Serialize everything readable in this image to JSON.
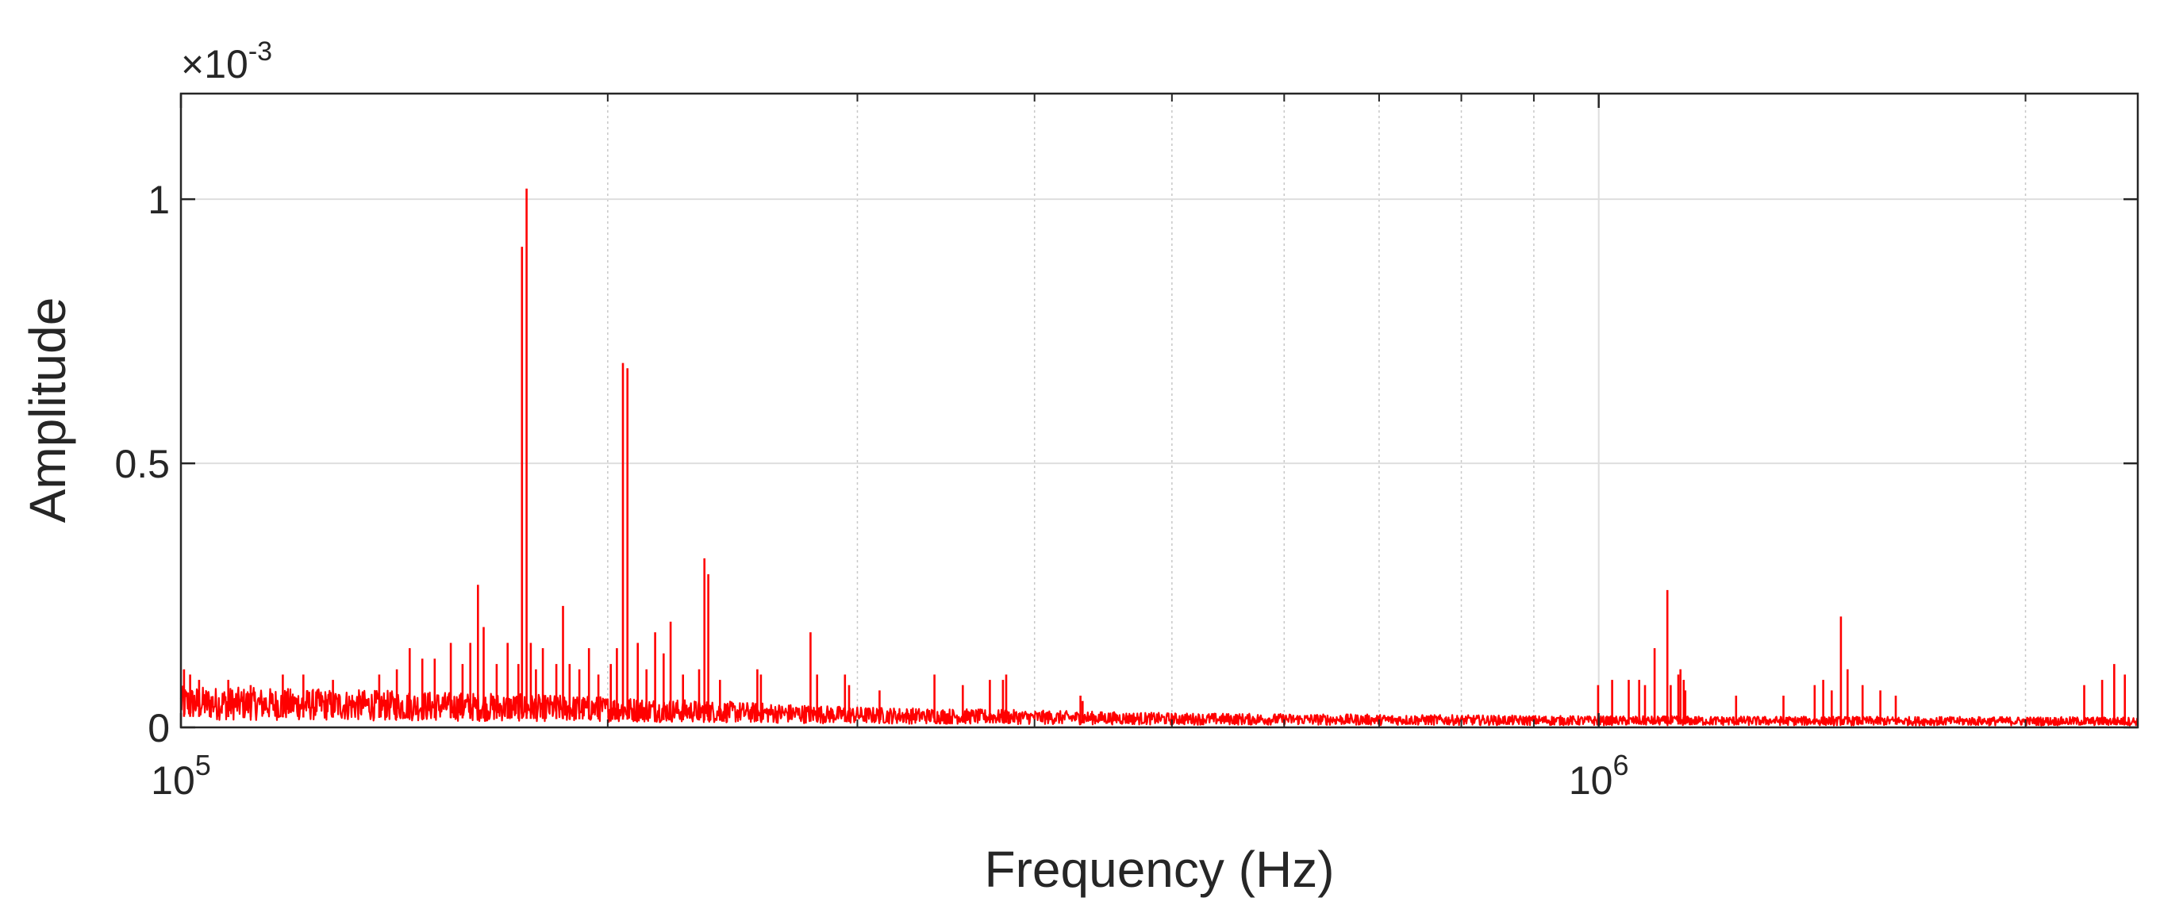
{
  "chart_data": {
    "type": "line",
    "title": "",
    "xlabel": "Frequency (Hz)",
    "ylabel": "Amplitude",
    "x_scale": "log",
    "xlim": [
      100000,
      2400000
    ],
    "ylim": [
      0,
      0.0012
    ],
    "y_exponent_label": {
      "base": "×10",
      "power": "-3"
    },
    "x_ticks": [
      {
        "value": 100000,
        "base": "10",
        "power": "5"
      },
      {
        "value": 1000000,
        "base": "10",
        "power": "6"
      }
    ],
    "y_ticks": [
      {
        "value": 0,
        "label": "0"
      },
      {
        "value": 0.0005,
        "label": "0.5"
      },
      {
        "value": 0.001,
        "label": "1"
      }
    ],
    "grid": true,
    "minor_grid_x": true,
    "line_color": "#ff0000",
    "noise_floor": [
      [
        100000,
        4e-05
      ],
      [
        150000,
        3.5e-05
      ],
      [
        200000,
        3e-05
      ],
      [
        300000,
        2e-05
      ],
      [
        500000,
        1.4e-05
      ],
      [
        1000000,
        1.1e-05
      ],
      [
        2400000,
        1e-05
      ]
    ],
    "series": [
      {
        "peaks": [
          [
            100500,
            0.00011
          ],
          [
            101500,
            0.0001
          ],
          [
            103000,
            9e-05
          ],
          [
            108000,
            9e-05
          ],
          [
            112000,
            8e-05
          ],
          [
            118000,
            0.0001
          ],
          [
            122000,
            0.0001
          ],
          [
            128000,
            9e-05
          ],
          [
            138000,
            0.0001
          ],
          [
            142000,
            0.00011
          ],
          [
            145000,
            0.00015
          ],
          [
            148000,
            0.00013
          ],
          [
            151000,
            0.00013
          ],
          [
            155000,
            0.00016
          ],
          [
            158000,
            0.00012
          ],
          [
            160000,
            0.00016
          ],
          [
            162000,
            0.00027
          ],
          [
            163500,
            0.00019
          ],
          [
            167000,
            0.00012
          ],
          [
            170000,
            0.00016
          ],
          [
            173000,
            0.00012
          ],
          [
            174000,
            0.00091
          ],
          [
            175300,
            0.00102
          ],
          [
            176500,
            0.00016
          ],
          [
            178000,
            0.00011
          ],
          [
            180000,
            0.00015
          ],
          [
            184000,
            0.00012
          ],
          [
            186000,
            0.00023
          ],
          [
            188000,
            0.00012
          ],
          [
            191000,
            0.00011
          ],
          [
            194000,
            0.00015
          ],
          [
            197000,
            0.0001
          ],
          [
            201000,
            0.00012
          ],
          [
            203000,
            0.00015
          ],
          [
            205000,
            0.00069
          ],
          [
            206500,
            0.00068
          ],
          [
            210000,
            0.00016
          ],
          [
            213000,
            0.00011
          ],
          [
            216000,
            0.00018
          ],
          [
            219000,
            0.00014
          ],
          [
            221500,
            0.0002
          ],
          [
            226000,
            0.0001
          ],
          [
            232000,
            0.00011
          ],
          [
            234000,
            0.00032
          ],
          [
            235500,
            0.00029
          ],
          [
            240000,
            9e-05
          ],
          [
            255000,
            0.00011
          ],
          [
            256500,
            0.0001
          ],
          [
            278000,
            0.00018
          ],
          [
            281000,
            0.0001
          ],
          [
            294000,
            0.0001
          ],
          [
            296000,
            8e-05
          ],
          [
            311000,
            7e-05
          ],
          [
            340000,
            0.0001
          ],
          [
            356000,
            8e-05
          ],
          [
            372000,
            9e-05
          ],
          [
            380000,
            9e-05
          ],
          [
            382000,
            0.0001
          ],
          [
            431000,
            6e-05
          ],
          [
            432500,
            5e-05
          ],
          [
            999000,
            8e-05
          ],
          [
            1022000,
            9e-05
          ],
          [
            1050000,
            9e-05
          ],
          [
            1068000,
            9e-05
          ],
          [
            1078000,
            8e-05
          ],
          [
            1095000,
            0.00015
          ],
          [
            1118000,
            0.00026
          ],
          [
            1124000,
            8e-05
          ],
          [
            1138000,
            0.0001
          ],
          [
            1142000,
            0.00011
          ],
          [
            1148000,
            9e-05
          ],
          [
            1151000,
            7e-05
          ],
          [
            1250000,
            6e-05
          ],
          [
            1350000,
            6e-05
          ],
          [
            1420000,
            8e-05
          ],
          [
            1440000,
            9e-05
          ],
          [
            1460000,
            7e-05
          ],
          [
            1482000,
            0.00021
          ],
          [
            1498000,
            0.00011
          ],
          [
            1535000,
            8e-05
          ],
          [
            1580000,
            7e-05
          ],
          [
            1620000,
            6e-05
          ],
          [
            2200000,
            8e-05
          ],
          [
            2265000,
            9e-05
          ],
          [
            2310000,
            0.00012
          ],
          [
            2350000,
            0.0001
          ]
        ]
      }
    ]
  }
}
